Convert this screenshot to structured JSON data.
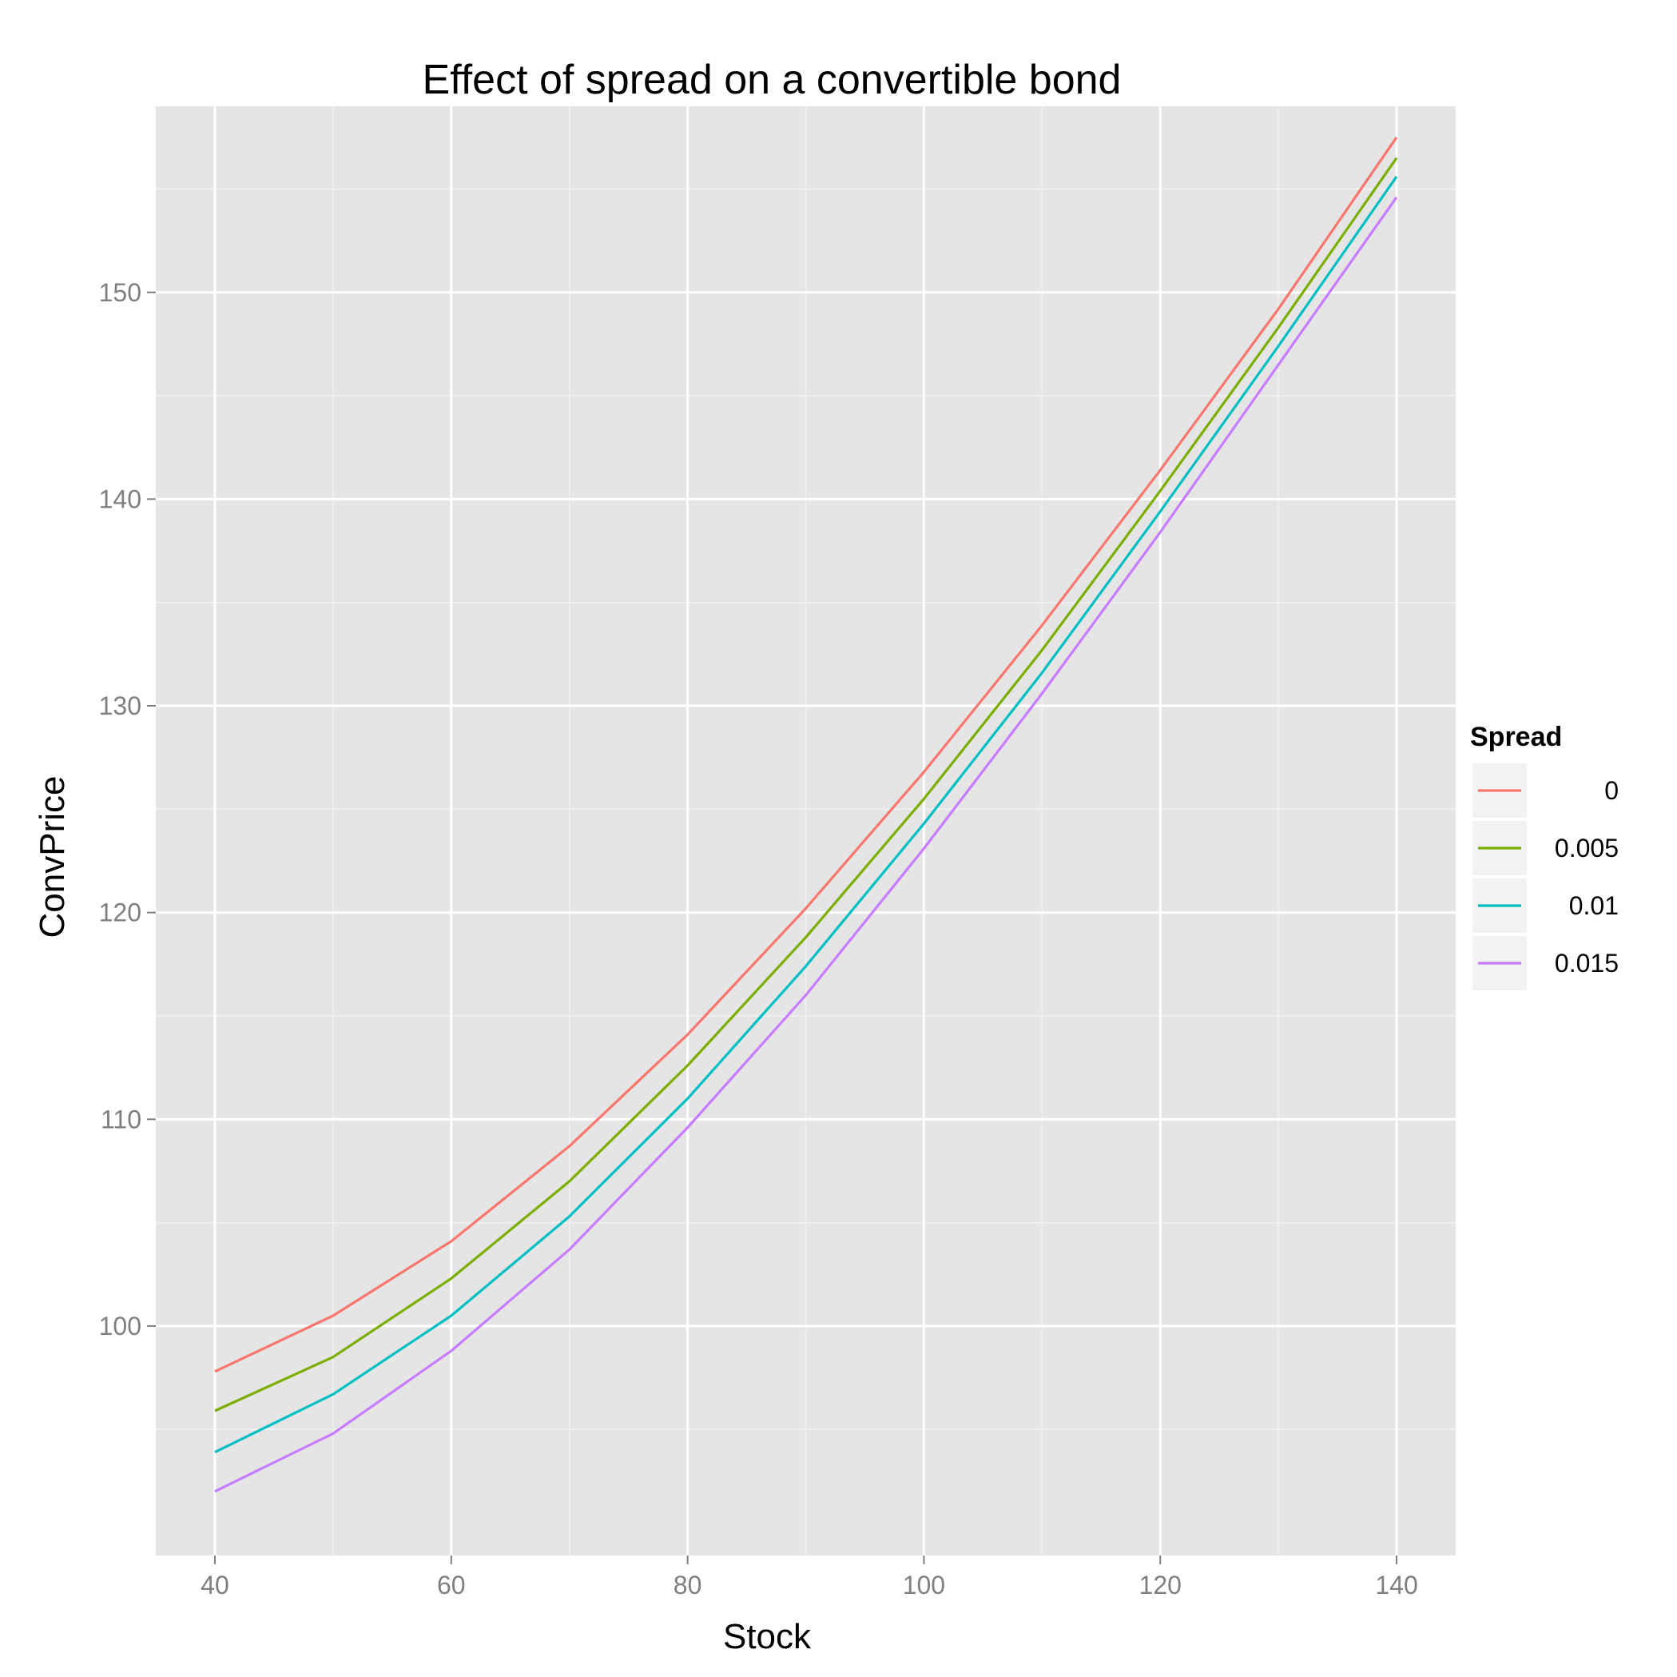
{
  "chart_data": {
    "type": "line",
    "title": "Effect of spread on a convertible bond",
    "xlabel": "Stock",
    "ylabel": "ConvPrice",
    "x": [
      40,
      50,
      60,
      70,
      80,
      90,
      100,
      110,
      120,
      130,
      140
    ],
    "xlim": [
      35,
      145
    ],
    "ylim": [
      88.9,
      159
    ],
    "x_ticks": [
      40,
      60,
      80,
      100,
      120,
      140
    ],
    "y_ticks": [
      100,
      110,
      120,
      130,
      140,
      150
    ],
    "x_tick_labels": [
      "40",
      "60",
      "80",
      "100",
      "120",
      "140"
    ],
    "y_tick_labels": [
      "100",
      "110",
      "120",
      "130",
      "140",
      "150"
    ],
    "grid": true,
    "legend": {
      "title": "Spread",
      "position": "right"
    },
    "series": [
      {
        "name": "0",
        "color": "#F8766D",
        "values": [
          97.8,
          100.5,
          104.1,
          108.7,
          114.1,
          120.2,
          126.8,
          133.9,
          141.4,
          149.2,
          157.5
        ]
      },
      {
        "name": "0.005",
        "color": "#7CAE00",
        "values": [
          95.9,
          98.5,
          102.3,
          107.0,
          112.6,
          118.8,
          125.5,
          132.7,
          140.4,
          148.3,
          156.5
        ]
      },
      {
        "name": "0.01",
        "color": "#00BFC4",
        "values": [
          93.9,
          96.7,
          100.5,
          105.3,
          111.0,
          117.4,
          124.3,
          131.6,
          139.4,
          147.4,
          155.6
        ]
      },
      {
        "name": "0.015",
        "color": "#C77CFF",
        "values": [
          92.0,
          94.8,
          98.8,
          103.7,
          109.6,
          116.0,
          123.1,
          130.6,
          138.4,
          146.5,
          154.6
        ]
      }
    ]
  }
}
